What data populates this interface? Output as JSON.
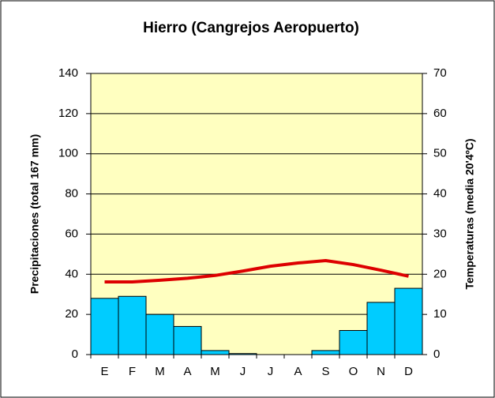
{
  "chart_data": {
    "type": "bar",
    "title": "Hierro (Cangrejos Aeropuerto)",
    "ylabel": "Precipitaciones (total 167 mm)",
    "y2label": "Temperaturas (media 20'4ºC)",
    "categories": [
      "E",
      "F",
      "M",
      "A",
      "M",
      "J",
      "J",
      "A",
      "S",
      "O",
      "N",
      "D"
    ],
    "series": [
      {
        "type": "bar",
        "color": "#00ccff",
        "values": [
          28,
          29,
          20,
          14,
          2,
          0.5,
          0,
          0,
          2,
          12,
          26,
          33
        ]
      },
      {
        "type": "line",
        "axis": "y2",
        "color": "#dd0000",
        "values": [
          18.1,
          18.1,
          18.5,
          19,
          19.7,
          20.8,
          22,
          22.8,
          23.4,
          22.4,
          21,
          19.5
        ]
      }
    ],
    "ylim": [
      0,
      140
    ],
    "yticks": [
      0,
      20,
      40,
      60,
      80,
      100,
      120,
      140
    ],
    "y2lim": [
      0,
      70
    ],
    "y2ticks": [
      0,
      10,
      20,
      30,
      40,
      50,
      60,
      70
    ],
    "grid": true,
    "plot_background": "#ffffc0"
  }
}
